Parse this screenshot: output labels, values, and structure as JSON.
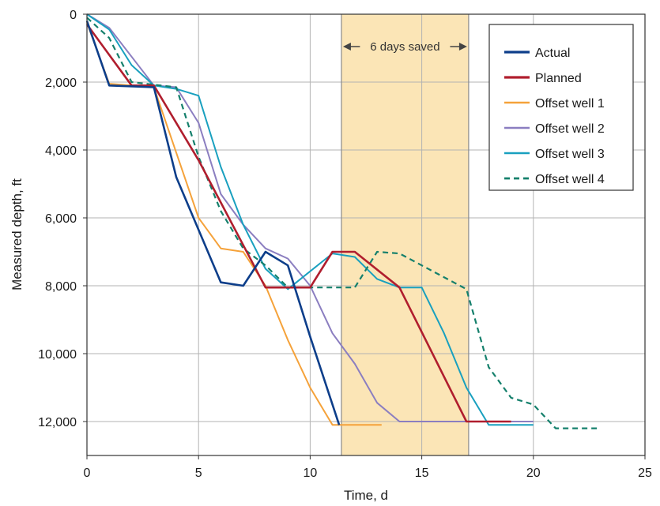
{
  "chart_data": {
    "type": "line",
    "title": "",
    "xlabel": "Time, d",
    "ylabel": "Measured depth, ft",
    "xlim": [
      0,
      25
    ],
    "ylim": [
      0,
      13000
    ],
    "y_inverted": true,
    "grid": true,
    "legend_position": "top-right",
    "x_ticks": [
      0,
      5,
      10,
      15,
      20,
      25
    ],
    "x_tick_labels": [
      "0",
      "5",
      "10",
      "15",
      "20",
      "25"
    ],
    "y_ticks": [
      0,
      2000,
      4000,
      6000,
      8000,
      10000,
      12000
    ],
    "y_tick_labels": [
      "0",
      "2,000",
      "4,000",
      "6,000",
      "8,000",
      "10,000",
      "12,000"
    ],
    "highlight": {
      "x_start": 11.4,
      "x_end": 17.1,
      "color": "#fbe5b6",
      "label": "6 days saved"
    },
    "series": [
      {
        "name": "Actual",
        "color": "#0d3e8a",
        "dashed": false,
        "width": 2.6,
        "points": [
          [
            0,
            200
          ],
          [
            1,
            2100
          ],
          [
            3,
            2150
          ],
          [
            4,
            4800
          ],
          [
            6,
            7900
          ],
          [
            7,
            8000
          ],
          [
            8,
            7000
          ],
          [
            9,
            7400
          ],
          [
            10,
            9500
          ],
          [
            11.3,
            12100
          ]
        ]
      },
      {
        "name": "Planned",
        "color": "#b01e2e",
        "dashed": false,
        "width": 2.6,
        "points": [
          [
            0,
            300
          ],
          [
            2,
            2100
          ],
          [
            3,
            2100
          ],
          [
            5,
            4300
          ],
          [
            8,
            8050
          ],
          [
            10,
            8050
          ],
          [
            11,
            7000
          ],
          [
            12,
            7000
          ],
          [
            14,
            8050
          ],
          [
            17,
            12000
          ],
          [
            19,
            12000
          ]
        ]
      },
      {
        "name": "Offset well 1",
        "color": "#f5a23a",
        "dashed": false,
        "width": 2,
        "points": [
          [
            0,
            250
          ],
          [
            1,
            2050
          ],
          [
            2,
            2100
          ],
          [
            3,
            2150
          ],
          [
            5,
            6000
          ],
          [
            6,
            6900
          ],
          [
            7,
            7000
          ],
          [
            8,
            8000
          ],
          [
            9,
            9600
          ],
          [
            10,
            11000
          ],
          [
            11,
            12100
          ],
          [
            13.2,
            12100
          ]
        ]
      },
      {
        "name": "Offset well 2",
        "color": "#8b7ec0",
        "dashed": false,
        "width": 2,
        "points": [
          [
            0,
            0
          ],
          [
            1,
            400
          ],
          [
            3,
            2100
          ],
          [
            4,
            2150
          ],
          [
            5,
            3200
          ],
          [
            6,
            5300
          ],
          [
            7,
            6200
          ],
          [
            8,
            6900
          ],
          [
            9,
            7200
          ],
          [
            10,
            8000
          ],
          [
            11,
            9400
          ],
          [
            12,
            10300
          ],
          [
            13,
            11450
          ],
          [
            14,
            12000
          ],
          [
            20,
            12000
          ]
        ]
      },
      {
        "name": "Offset well 3",
        "color": "#19a0bf",
        "dashed": false,
        "width": 2,
        "points": [
          [
            0,
            0
          ],
          [
            1,
            450
          ],
          [
            2,
            1500
          ],
          [
            3,
            2100
          ],
          [
            4,
            2200
          ],
          [
            5,
            2400
          ],
          [
            6,
            4500
          ],
          [
            7,
            6200
          ],
          [
            8,
            7500
          ],
          [
            9,
            8100
          ],
          [
            11,
            7050
          ],
          [
            12,
            7150
          ],
          [
            13,
            7800
          ],
          [
            14,
            8050
          ],
          [
            15,
            8050
          ],
          [
            16,
            9400
          ],
          [
            17,
            11000
          ],
          [
            18,
            12100
          ],
          [
            20,
            12100
          ]
        ]
      },
      {
        "name": "Offset well 4",
        "color": "#15806c",
        "dashed": true,
        "width": 2.2,
        "points": [
          [
            0,
            100
          ],
          [
            1,
            700
          ],
          [
            2,
            2000
          ],
          [
            4,
            2150
          ],
          [
            5,
            4200
          ],
          [
            6,
            5800
          ],
          [
            7,
            6900
          ],
          [
            8,
            7400
          ],
          [
            9,
            8050
          ],
          [
            12,
            8050
          ],
          [
            13,
            7000
          ],
          [
            14,
            7050
          ],
          [
            15,
            7400
          ],
          [
            17,
            8100
          ],
          [
            18,
            10400
          ],
          [
            19,
            11300
          ],
          [
            20,
            11500
          ],
          [
            21,
            12200
          ],
          [
            23,
            12200
          ]
        ]
      }
    ]
  }
}
